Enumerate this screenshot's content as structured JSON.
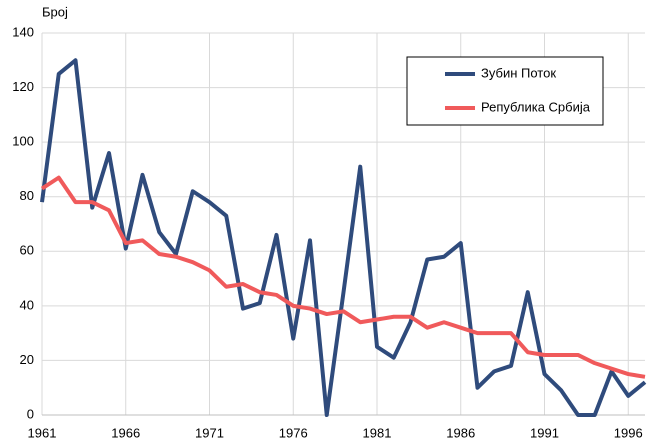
{
  "chart_data": {
    "type": "line",
    "y_label": "Број",
    "x": [
      1961,
      1962,
      1963,
      1964,
      1965,
      1966,
      1967,
      1968,
      1969,
      1970,
      1971,
      1972,
      1973,
      1974,
      1975,
      1976,
      1977,
      1978,
      1979,
      1980,
      1981,
      1982,
      1983,
      1984,
      1985,
      1986,
      1987,
      1988,
      1989,
      1990,
      1991,
      1992,
      1993,
      1994,
      1995,
      1996,
      1997
    ],
    "series": [
      {
        "name": "Зубин Поток",
        "color": "#2f4b7c",
        "values": [
          78,
          125,
          130,
          76,
          96,
          61,
          88,
          67,
          59,
          82,
          78,
          73,
          39,
          41,
          66,
          28,
          64,
          0,
          45,
          91,
          25,
          21,
          34,
          57,
          58,
          63,
          10,
          16,
          18,
          45,
          15,
          9,
          0,
          0,
          16,
          7,
          12
        ]
      },
      {
        "name": "Република Србија",
        "color": "#f05a5b",
        "values": [
          83,
          87,
          78,
          78,
          75,
          63,
          64,
          59,
          58,
          56,
          53,
          47,
          48,
          45,
          44,
          40,
          39,
          37,
          38,
          34,
          35,
          36,
          36,
          32,
          34,
          32,
          30,
          30,
          30,
          23,
          22,
          22,
          22,
          19,
          17,
          15,
          14
        ]
      }
    ],
    "xlim": [
      1961,
      1997
    ],
    "xticks": [
      1961,
      1966,
      1971,
      1976,
      1981,
      1986,
      1991,
      1996
    ],
    "ylim": [
      0,
      140
    ],
    "yticks": [
      0,
      20,
      40,
      60,
      80,
      100,
      120,
      140
    ],
    "grid": true,
    "legend": "upper-right"
  }
}
